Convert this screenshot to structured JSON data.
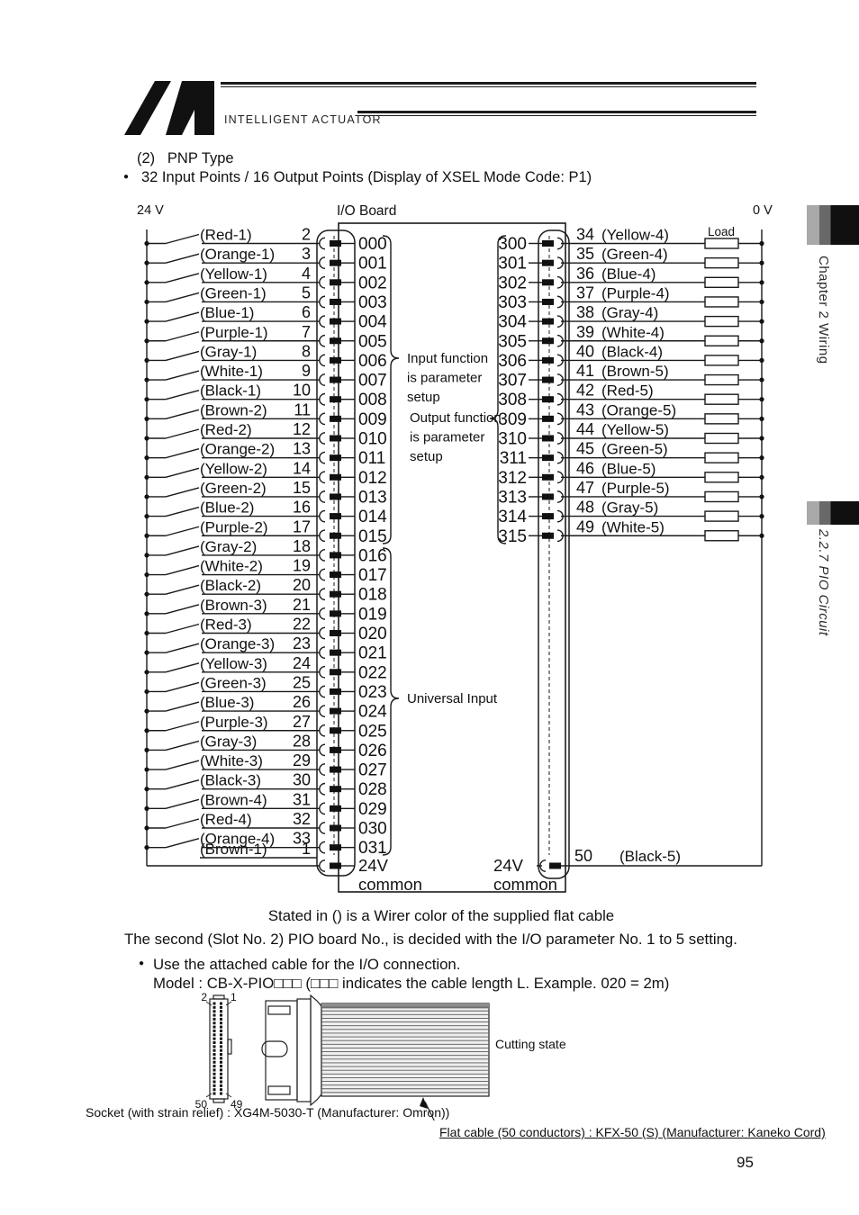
{
  "header": {
    "brand": "INTELLIGENT ACTUATOR",
    "section_heading": "(2)   PNP Type",
    "bullet_char": "●",
    "bullet_line": "32 Input Points / 16 Output Points (Display of XSEL Mode Code: P1)"
  },
  "sidebar": {
    "chapter_tab": "Chapter 2 Wiring",
    "section_tab": "2.2.7 PIO Circuit"
  },
  "diagram": {
    "supply_label": "24 V",
    "ground_label": "0 V",
    "board_label": "I/O Board",
    "load_label": "Load",
    "input_function_note": [
      "Input function",
      "is parameter",
      "setup"
    ],
    "output_function_note": [
      "Output function",
      "is parameter",
      "setup"
    ],
    "universal_input_note": "Universal Input",
    "common_left": {
      "line1": "24V",
      "line2": "common"
    },
    "common_right": {
      "line1": "24V",
      "line2": "common"
    },
    "inputs": [
      {
        "color": "(Red-1)",
        "pin": "2",
        "signal": "000"
      },
      {
        "color": "(Orange-1)",
        "pin": "3",
        "signal": "001"
      },
      {
        "color": "(Yellow-1)",
        "pin": "4",
        "signal": "002"
      },
      {
        "color": "(Green-1)",
        "pin": "5",
        "signal": "003"
      },
      {
        "color": "(Blue-1)",
        "pin": "6",
        "signal": "004"
      },
      {
        "color": "(Purple-1)",
        "pin": "7",
        "signal": "005"
      },
      {
        "color": "(Gray-1)",
        "pin": "8",
        "signal": "006"
      },
      {
        "color": "(White-1)",
        "pin": "9",
        "signal": "007"
      },
      {
        "color": "(Black-1)",
        "pin": "10",
        "signal": "008"
      },
      {
        "color": "(Brown-2)",
        "pin": "11",
        "signal": "009"
      },
      {
        "color": "(Red-2)",
        "pin": "12",
        "signal": "010"
      },
      {
        "color": "(Orange-2)",
        "pin": "13",
        "signal": "011"
      },
      {
        "color": "(Yellow-2)",
        "pin": "14",
        "signal": "012"
      },
      {
        "color": "(Green-2)",
        "pin": "15",
        "signal": "013"
      },
      {
        "color": "(Blue-2)",
        "pin": "16",
        "signal": "014"
      },
      {
        "color": "(Purple-2)",
        "pin": "17",
        "signal": "015"
      },
      {
        "color": "(Gray-2)",
        "pin": "18",
        "signal": "016"
      },
      {
        "color": "(White-2)",
        "pin": "19",
        "signal": "017"
      },
      {
        "color": "(Black-2)",
        "pin": "20",
        "signal": "018"
      },
      {
        "color": "(Brown-3)",
        "pin": "21",
        "signal": "019"
      },
      {
        "color": "(Red-3)",
        "pin": "22",
        "signal": "020"
      },
      {
        "color": "(Orange-3)",
        "pin": "23",
        "signal": "021"
      },
      {
        "color": "(Yellow-3)",
        "pin": "24",
        "signal": "022"
      },
      {
        "color": "(Green-3)",
        "pin": "25",
        "signal": "023"
      },
      {
        "color": "(Blue-3)",
        "pin": "26",
        "signal": "024"
      },
      {
        "color": "(Purple-3)",
        "pin": "27",
        "signal": "025"
      },
      {
        "color": "(Gray-3)",
        "pin": "28",
        "signal": "026"
      },
      {
        "color": "(White-3)",
        "pin": "29",
        "signal": "027"
      },
      {
        "color": "(Black-3)",
        "pin": "30",
        "signal": "028"
      },
      {
        "color": "(Brown-4)",
        "pin": "31",
        "signal": "029"
      },
      {
        "color": "(Red-4)",
        "pin": "32",
        "signal": "030"
      },
      {
        "color": "(Orange-4)",
        "pin": "33",
        "signal": "031"
      }
    ],
    "input_common": {
      "color": "(Brown-1)",
      "pin": "1"
    },
    "outputs": [
      {
        "signal": "300",
        "pin": "34",
        "color": "(Yellow-4)"
      },
      {
        "signal": "301",
        "pin": "35",
        "color": "(Green-4)"
      },
      {
        "signal": "302",
        "pin": "36",
        "color": "(Blue-4)"
      },
      {
        "signal": "303",
        "pin": "37",
        "color": "(Purple-4)"
      },
      {
        "signal": "304",
        "pin": "38",
        "color": "(Gray-4)"
      },
      {
        "signal": "305",
        "pin": "39",
        "color": "(White-4)"
      },
      {
        "signal": "306",
        "pin": "40",
        "color": "(Black-4)"
      },
      {
        "signal": "307",
        "pin": "41",
        "color": "(Brown-5)"
      },
      {
        "signal": "308",
        "pin": "42",
        "color": "(Red-5)"
      },
      {
        "signal": "309",
        "pin": "43",
        "color": "(Orange-5)"
      },
      {
        "signal": "310",
        "pin": "44",
        "color": "(Yellow-5)"
      },
      {
        "signal": "311",
        "pin": "45",
        "color": "(Green-5)"
      },
      {
        "signal": "312",
        "pin": "46",
        "color": "(Blue-5)"
      },
      {
        "signal": "313",
        "pin": "47",
        "color": "(Purple-5)"
      },
      {
        "signal": "314",
        "pin": "48",
        "color": "(Gray-5)"
      },
      {
        "signal": "315",
        "pin": "49",
        "color": "(White-5)"
      }
    ],
    "output_common": {
      "pin": "50",
      "color": "(Black-5)"
    }
  },
  "caption": "Stated in () is a Wirer color of the supplied flat cable",
  "body": {
    "para": "The second (Slot No. 2) PIO board No., is decided with the I/O parameter No. 1 to 5 setting.",
    "bullet_char": "●",
    "bullet": "Use the attached cable for the I/O connection.",
    "model_line": "Model : CB-X-PIO□□□ (□□□ indicates the cable length L. Example. 020 = 2m)"
  },
  "figure": {
    "pin_top_left": "2",
    "pin_top_right": "1",
    "pin_bottom_left": "50",
    "pin_bottom_right": "49",
    "cutting_state": "Cutting state",
    "socket_note": "Socket (with strain relief) : XG4M-5030-T (Manufacturer: Omron))",
    "cable_note": "Flat cable (50 conductors) : KFX-50 (S) (Manufacturer: Kaneko Cord)"
  },
  "footer": {
    "page_number": "95"
  }
}
